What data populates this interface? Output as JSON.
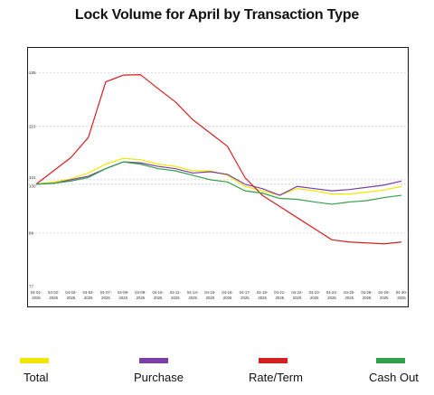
{
  "chart_data": {
    "type": "line",
    "title": "Lock Volume for April by Transaction Type",
    "xlabel": "",
    "ylabel": "",
    "x": [
      "04-01-2025",
      "04-02-2025",
      "04-03-2025",
      "04-04-2025",
      "04-07-2025",
      "04-08-2025",
      "04-09-2025",
      "04-10-2025",
      "04-11-2025",
      "04-14-2025",
      "04-15-2025",
      "04-16-2025",
      "04-17-2025",
      "04-18-2025",
      "04-21-2025",
      "04-22-2025",
      "04-23-2025",
      "04-24-2025",
      "04-25-2025",
      "04-28-2025",
      "04-29-2025",
      "04-30-2025"
    ],
    "x_tick_labels": [
      [
        "04-01-",
        "2025"
      ],
      [
        "04-02-",
        "2025"
      ],
      [
        "04-03-",
        "2025"
      ],
      [
        "04-04-",
        "2025"
      ],
      [
        "04-07-",
        "2025"
      ],
      [
        "04-08-",
        "2025"
      ],
      [
        "04-09-",
        "2025"
      ],
      [
        "04-10-",
        "2025"
      ],
      [
        "04-11-",
        "2025"
      ],
      [
        "04-14-",
        "2025"
      ],
      [
        "04-15-",
        "2025"
      ],
      [
        "04-16-",
        "2025"
      ],
      [
        "04-17-",
        "2025"
      ],
      [
        "04-18-",
        "2025"
      ],
      [
        "04-21-",
        "2025"
      ],
      [
        "04-22-",
        "2025"
      ],
      [
        "04-23-",
        "2025"
      ],
      [
        "04-24-",
        "2025"
      ],
      [
        "04-25-",
        "2025"
      ],
      [
        "04-28-",
        "2025"
      ],
      [
        "04-29-",
        "2025"
      ],
      [
        "04-30-",
        "2025"
      ]
    ],
    "y_ticks": [
      {
        "value": 77,
        "label": "77"
      },
      {
        "value": 89,
        "label": "89"
      },
      {
        "value": 100,
        "label": "100"
      },
      {
        "value": 101,
        "label": "101"
      },
      {
        "value": 113,
        "label": "113"
      },
      {
        "value": 125,
        "label": "125"
      }
    ],
    "ylim": [
      77,
      129
    ],
    "grid": true,
    "legend_position": "bottom",
    "series": [
      {
        "name": "Total",
        "color": "#f2e600",
        "values": [
          100,
          100.5,
          101.2,
          102.5,
          104.5,
          105.8,
          105.5,
          104.5,
          104,
          103,
          103,
          102,
          99.5,
          98.5,
          97.5,
          99,
          98.5,
          97.8,
          97.8,
          98.2,
          98.7,
          99.5
        ]
      },
      {
        "name": "Purchase",
        "color": "#7a3ea6",
        "values": [
          100,
          100.2,
          101,
          101.8,
          103.5,
          105,
          104.8,
          104,
          103.5,
          102.5,
          102.8,
          102.2,
          100,
          99,
          97.5,
          99.5,
          99,
          98.5,
          98.8,
          99.3,
          99.8,
          100.7
        ]
      },
      {
        "name": "Rate/Term",
        "color": "#d42020",
        "values": [
          100,
          103,
          106,
          110.5,
          123,
          124.5,
          124.6,
          121.5,
          118.5,
          114.5,
          111.5,
          108.5,
          101.5,
          97.5,
          95,
          92.5,
          90,
          87.5,
          87,
          86.8,
          86.6,
          87
        ]
      },
      {
        "name": "Cash Out",
        "color": "#33a04a",
        "values": [
          100,
          100.2,
          100.7,
          101.5,
          103.5,
          105,
          104.5,
          103.5,
          103,
          102,
          101,
          100.5,
          98.5,
          98,
          96.8,
          96.6,
          96,
          95.5,
          96,
          96.3,
          97,
          97.5
        ]
      }
    ]
  }
}
